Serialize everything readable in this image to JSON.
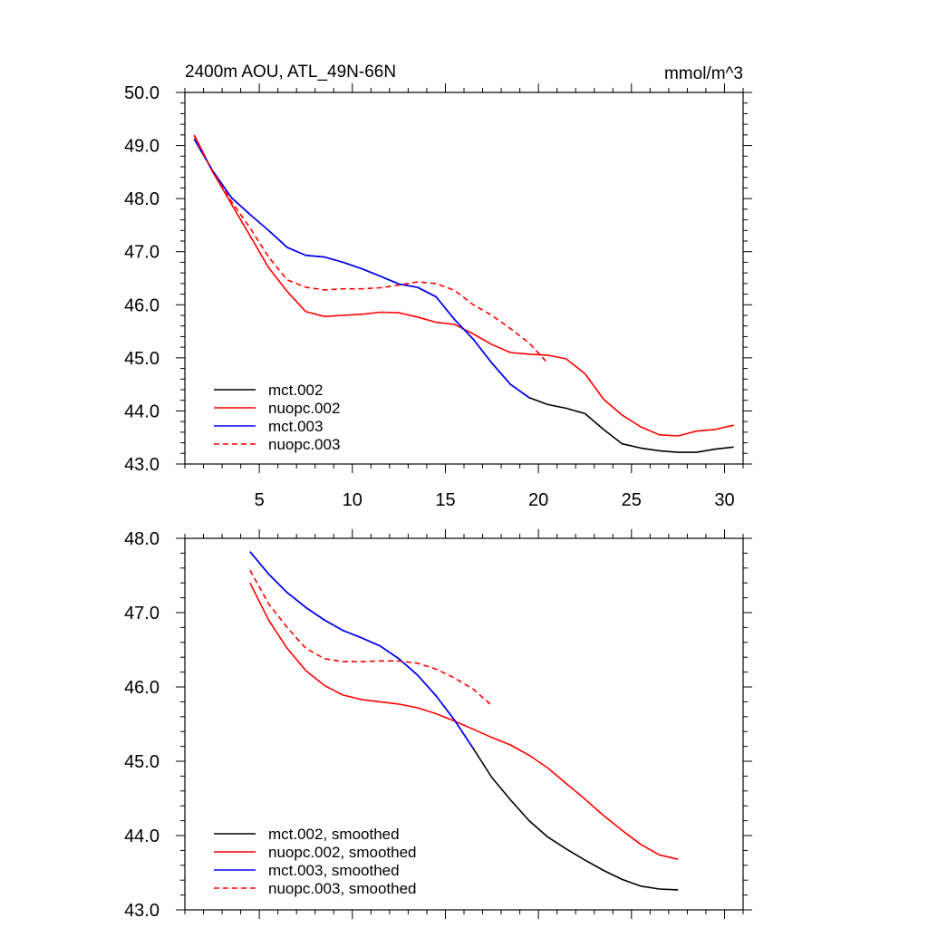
{
  "chart_data": [
    {
      "type": "line",
      "title": "2400m AOU, ATL_49N-66N",
      "units": "mmol/m^3",
      "xlim": [
        1,
        31
      ],
      "ylim": [
        43.0,
        50.0
      ],
      "x_ticks": [
        5,
        10,
        15,
        20,
        25,
        30
      ],
      "y_ticks": [
        43.0,
        44.0,
        45.0,
        46.0,
        47.0,
        48.0,
        49.0,
        50.0
      ],
      "y_tick_labels": [
        "43.0",
        "44.0",
        "45.0",
        "46.0",
        "47.0",
        "48.0",
        "49.0",
        "50.0"
      ],
      "legend_position": "bottom-left",
      "series": [
        {
          "name": "mct.002",
          "color": "#000000",
          "dash": "solid",
          "x": [
            1.5,
            2.5,
            3.5,
            4.5,
            5.5,
            6.5,
            7.5,
            8.5,
            9.5,
            10.5,
            11.5,
            12.5,
            13.5,
            14.5,
            15.5,
            16.5,
            17.5,
            18.5,
            19.5,
            20.5,
            21.5,
            22.5,
            23.5,
            24.5,
            25.5,
            26.5,
            27.5,
            28.5,
            29.5,
            30.5
          ],
          "y": [
            49.12,
            48.52,
            48.02,
            47.7,
            47.4,
            47.08,
            46.93,
            46.9,
            46.8,
            46.68,
            46.54,
            46.39,
            46.33,
            46.15,
            45.72,
            45.35,
            44.9,
            44.5,
            44.25,
            44.12,
            44.05,
            43.95,
            43.65,
            43.38,
            43.3,
            43.25,
            43.22,
            43.22,
            43.28,
            43.32
          ]
        },
        {
          "name": "nuopc.002",
          "color": "#ff0000",
          "dash": "solid",
          "x": [
            1.5,
            2.5,
            3.5,
            4.5,
            5.5,
            6.5,
            7.5,
            8.5,
            9.5,
            10.5,
            11.5,
            12.5,
            13.5,
            14.5,
            15.5,
            16.5,
            17.5,
            18.5,
            19.5,
            20.5,
            21.5,
            22.5,
            23.5,
            24.5,
            25.5,
            26.5,
            27.5,
            28.5,
            29.5,
            30.5
          ],
          "y": [
            49.2,
            48.5,
            47.9,
            47.3,
            46.7,
            46.25,
            45.87,
            45.78,
            45.8,
            45.82,
            45.86,
            45.85,
            45.77,
            45.67,
            45.63,
            45.45,
            45.25,
            45.1,
            45.07,
            45.05,
            44.98,
            44.7,
            44.22,
            43.92,
            43.7,
            43.55,
            43.53,
            43.62,
            43.65,
            43.73
          ]
        },
        {
          "name": "mct.003",
          "color": "#0000ff",
          "dash": "solid",
          "x": [
            1.5,
            2.5,
            3.5,
            4.5,
            5.5,
            6.5,
            7.5,
            8.5,
            9.5,
            10.5,
            11.5,
            12.5,
            13.5,
            14.5,
            15.5,
            16.5,
            17.5,
            18.5,
            19.5
          ],
          "y": [
            49.12,
            48.52,
            48.02,
            47.7,
            47.4,
            47.08,
            46.93,
            46.9,
            46.8,
            46.68,
            46.54,
            46.39,
            46.33,
            46.15,
            45.72,
            45.35,
            44.9,
            44.5,
            44.25
          ]
        },
        {
          "name": "nuopc.003",
          "color": "#ff0000",
          "dash": "dashed",
          "x": [
            1.5,
            2.5,
            3.5,
            4.5,
            5.5,
            6.5,
            7.5,
            8.5,
            9.5,
            10.5,
            11.5,
            12.5,
            13.5,
            14.5,
            15.5,
            16.5,
            17.5,
            18.5,
            19.5,
            20.5
          ],
          "y": [
            49.18,
            48.5,
            47.95,
            47.45,
            46.9,
            46.47,
            46.33,
            46.28,
            46.3,
            46.3,
            46.32,
            46.37,
            46.43,
            46.4,
            46.27,
            46.0,
            45.8,
            45.55,
            45.28,
            44.9
          ]
        }
      ]
    },
    {
      "type": "line",
      "title": "",
      "units": "",
      "xlim": [
        1,
        31
      ],
      "ylim": [
        43.0,
        48.0
      ],
      "x_ticks": [
        5,
        10,
        15,
        20,
        25,
        30
      ],
      "y_ticks": [
        43.0,
        44.0,
        45.0,
        46.0,
        47.0,
        48.0
      ],
      "y_tick_labels": [
        "43.0",
        "44.0",
        "45.0",
        "46.0",
        "47.0",
        "48.0"
      ],
      "legend_position": "bottom-left",
      "series": [
        {
          "name": "mct.002, smoothed",
          "color": "#000000",
          "dash": "solid",
          "x": [
            4.5,
            5.5,
            6.5,
            7.5,
            8.5,
            9.5,
            10.5,
            11.5,
            12.5,
            13.5,
            14.5,
            15.5,
            16.5,
            17.5,
            18.5,
            19.5,
            20.5,
            21.5,
            22.5,
            23.5,
            24.5,
            25.5,
            26.5,
            27.5
          ],
          "y": [
            47.82,
            47.52,
            47.27,
            47.07,
            46.9,
            46.76,
            46.66,
            46.55,
            46.38,
            46.16,
            45.88,
            45.55,
            45.17,
            44.78,
            44.48,
            44.2,
            43.98,
            43.82,
            43.67,
            43.53,
            43.41,
            43.32,
            43.28,
            43.27
          ]
        },
        {
          "name": "nuopc.002, smoothed",
          "color": "#ff0000",
          "dash": "solid",
          "x": [
            4.5,
            5.5,
            6.5,
            7.5,
            8.5,
            9.5,
            10.5,
            11.5,
            12.5,
            13.5,
            14.5,
            15.5,
            16.5,
            17.5,
            18.5,
            19.5,
            20.5,
            21.5,
            22.5,
            23.5,
            24.5,
            25.5,
            26.5,
            27.5
          ],
          "y": [
            47.4,
            46.9,
            46.52,
            46.22,
            46.02,
            45.89,
            45.83,
            45.8,
            45.77,
            45.72,
            45.64,
            45.54,
            45.43,
            45.32,
            45.22,
            45.08,
            44.91,
            44.7,
            44.49,
            44.27,
            44.07,
            43.88,
            43.74,
            43.68
          ]
        },
        {
          "name": "mct.003, smoothed",
          "color": "#0000ff",
          "dash": "solid",
          "x": [
            4.5,
            5.5,
            6.5,
            7.5,
            8.5,
            9.5,
            10.5,
            11.5,
            12.5,
            13.5,
            14.5,
            15.5,
            16.5
          ],
          "y": [
            47.82,
            47.52,
            47.27,
            47.07,
            46.9,
            46.76,
            46.66,
            46.55,
            46.38,
            46.16,
            45.88,
            45.55,
            45.17
          ]
        },
        {
          "name": "nuopc.003, smoothed",
          "color": "#ff0000",
          "dash": "dashed",
          "x": [
            4.5,
            5.5,
            6.5,
            7.5,
            8.5,
            9.5,
            10.5,
            11.5,
            12.5,
            13.5,
            14.5,
            15.5,
            16.5,
            17.5
          ],
          "y": [
            47.57,
            47.12,
            46.8,
            46.52,
            46.38,
            46.34,
            46.34,
            46.35,
            46.35,
            46.32,
            46.24,
            46.12,
            45.97,
            45.75
          ]
        }
      ]
    }
  ]
}
